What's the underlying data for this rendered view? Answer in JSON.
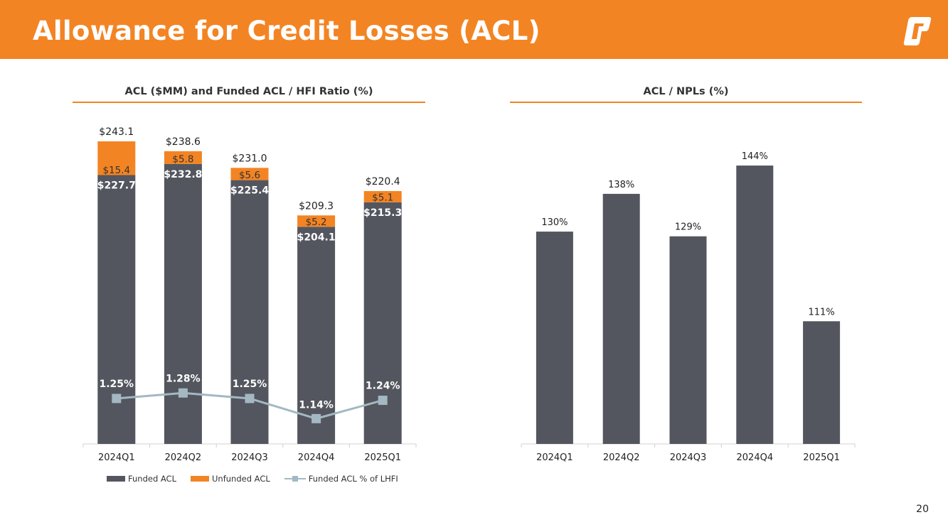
{
  "header": {
    "title": "Allowance for Credit Losses (ACL)"
  },
  "colors": {
    "brand_orange": "#f38423",
    "funded": "#53565e",
    "unfunded": "#f38423",
    "ratio_line": "#a3b8c2"
  },
  "page_number": "20",
  "chart_data": [
    {
      "type": "bar",
      "stacked": true,
      "title": "ACL ($MM) and Funded ACL / HFI Ratio (%)",
      "categories": [
        "2024Q1",
        "2024Q2",
        "2024Q3",
        "2024Q4",
        "2025Q1"
      ],
      "series": [
        {
          "name": "Funded ACL",
          "values": [
            227.7,
            232.8,
            225.4,
            204.1,
            215.3
          ],
          "labels": [
            "$227.7",
            "$232.8",
            "$225.4",
            "$204.1",
            "$215.3"
          ]
        },
        {
          "name": "Unfunded ACL",
          "values": [
            15.4,
            5.8,
            5.6,
            5.2,
            5.1
          ],
          "labels": [
            "$15.4",
            "$5.8",
            "$5.6",
            "$5.2",
            "$5.1"
          ]
        }
      ],
      "totals": [
        243.1,
        238.6,
        231.0,
        209.3,
        220.4
      ],
      "total_labels": [
        "$243.1",
        "$238.6",
        "$231.0",
        "$209.3",
        "$220.4"
      ],
      "line_series": {
        "name": "Funded ACL % of LHFI",
        "values": [
          1.25,
          1.28,
          1.25,
          1.14,
          1.24
        ],
        "labels": [
          "1.25%",
          "1.28%",
          "1.25%",
          "1.14%",
          "1.24%"
        ]
      },
      "ylim": [
        0,
        250
      ],
      "line_ylim": [
        0,
        3
      ],
      "legend_position": "bottom"
    },
    {
      "type": "bar",
      "title": "ACL / NPLs (%)",
      "categories": [
        "2024Q1",
        "2024Q2",
        "2024Q3",
        "2024Q4",
        "2025Q1"
      ],
      "values": [
        130,
        138,
        129,
        144,
        111
      ],
      "labels": [
        "130%",
        "138%",
        "129%",
        "144%",
        "111%"
      ],
      "ylim": [
        85,
        155
      ]
    }
  ]
}
